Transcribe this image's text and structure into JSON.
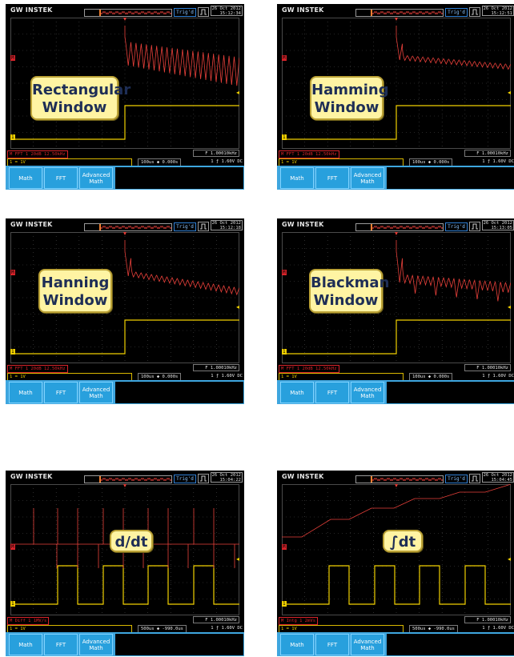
{
  "colors": {
    "math_trace": "#e8403a",
    "ch1_trace": "#f1d000",
    "callout_fill": "#fff4a3",
    "menu_blue": "#28a0dd",
    "grid": "#4a4a4a"
  },
  "panels": [
    {
      "id": "rect",
      "logo": "GW INSTEK",
      "trig_status": "Trig'd",
      "date": "26 Oct 2012",
      "time": "15:12:34",
      "callout": [
        "Rectangular",
        "Window"
      ],
      "math_label": "M FFT 1  20dB  12.50kHz",
      "ch1_label": "1 = 1V",
      "timebase": "100us ◆ 0.000s",
      "freq": "F 1.00010kHz",
      "trigger": "1 ƒ 1.60V DC",
      "menu": [
        "Math",
        "FFT",
        "Advanced Math"
      ]
    },
    {
      "id": "hamming",
      "logo": "GW INSTEK",
      "trig_status": "Trig'd",
      "date": "26 Oct 2012",
      "time": "15:12:51",
      "callout": [
        "Hamming",
        "Window"
      ],
      "math_label": "M FFT 1  20dB  12.50kHz",
      "ch1_label": "1 = 1V",
      "timebase": "100us ◆ 0.000s",
      "freq": "F 1.00010kHz",
      "trigger": "1 ƒ 1.60V DC",
      "menu": [
        "Math",
        "FFT",
        "Advanced Math"
      ]
    },
    {
      "id": "hanning",
      "logo": "GW INSTEK",
      "trig_status": "Trig'd",
      "date": "26 Oct 2012",
      "time": "15:12:18",
      "callout": [
        "Hanning",
        "Window"
      ],
      "math_label": "M FFT 1  20dB  12.50kHz",
      "ch1_label": "1 = 1V",
      "timebase": "100us ◆ 0.000s",
      "freq": "F 1.00010kHz",
      "trigger": "1 ƒ 1.60V DC",
      "menu": [
        "Math",
        "FFT",
        "Advanced Math"
      ]
    },
    {
      "id": "blackman",
      "logo": "GW INSTEK",
      "trig_status": "Trig'd",
      "date": "26 Oct 2012",
      "time": "15:13:05",
      "callout": [
        "Blackman",
        "Window"
      ],
      "math_label": "M FFT 1  20dB  12.50kHz",
      "ch1_label": "1 = 1V",
      "timebase": "100us ◆ 0.000s",
      "freq": "F 1.00010kHz",
      "trigger": "1 ƒ 1.60V DC",
      "menu": [
        "Math",
        "FFT",
        "Advanced Math"
      ]
    },
    {
      "id": "ddt",
      "logo": "GW INSTEK",
      "trig_status": "Trig'd",
      "date": "26 Oct 2012",
      "time": "15:04:22",
      "callout": [
        "d/dt"
      ],
      "math_label": "M Diff 1  1MV/s",
      "ch1_label": "1 = 1V",
      "timebase": "500us ◆ -990.0us",
      "freq": "F 1.00010kHz",
      "trigger": "1 ƒ 1.60V DC",
      "menu": [
        "Math",
        "FFT",
        "Advanced Math"
      ]
    },
    {
      "id": "integral",
      "logo": "GW INSTEK",
      "trig_status": "Trig'd",
      "date": "26 Oct 2012",
      "time": "15:04:45",
      "callout": [
        "∫dt"
      ],
      "math_label": "M Intg 1  2mVs",
      "ch1_label": "1 = 1V",
      "timebase": "500us ◆ -990.0us",
      "freq": "F 1.00010kHz",
      "trigger": "1 ƒ 1.60V DC",
      "menu": [
        "Math",
        "FFT",
        "Advanced Math"
      ]
    }
  ]
}
